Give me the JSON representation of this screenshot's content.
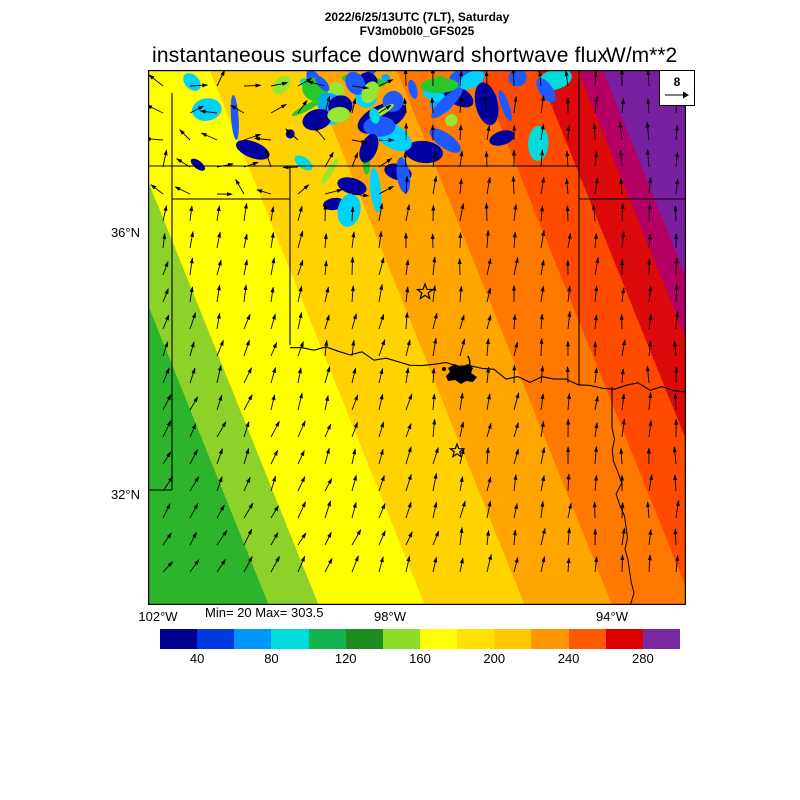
{
  "header": {
    "run_line": "2022/6/25/13UTC (7LT), Saturday",
    "model_line": "FV3m0b0l0_GFS025",
    "title": "instantaneous surface downward shortwave flux",
    "units": "W/m**2"
  },
  "map": {
    "stats_label": "Min= 20 Max= 303.5",
    "reference_value": "8",
    "lat_labels": [
      "36°N",
      "32°N"
    ],
    "lon_labels": [
      "102°W",
      "98°W",
      "94°W"
    ]
  },
  "chart_data": {
    "type": "heatmap",
    "title": "instantaneous surface downward shortwave flux",
    "units": "W/m**2",
    "timestamp": "2022/6/25/13UTC (7LT), Saturday",
    "model": "FV3m0b0l0_GFS025",
    "min": 20,
    "max": 303.5,
    "vector_overlay": {
      "type": "wind-arrows",
      "reference_value": 8
    },
    "x_axis": {
      "ticks": [
        "102°W",
        "98°W",
        "94°W"
      ]
    },
    "y_axis": {
      "ticks": [
        "36°N",
        "32°N"
      ]
    },
    "colorbar": {
      "orientation": "horizontal",
      "range": [
        20,
        300
      ],
      "tick_values": [
        40,
        80,
        120,
        160,
        200,
        240,
        280
      ],
      "segment_colors": [
        "#00008C",
        "#0038E1",
        "#0096FF",
        "#00DCDC",
        "#14B450",
        "#1E8C1E",
        "#8CDC28",
        "#FFFF00",
        "#FFE100",
        "#FFC800",
        "#FF9600",
        "#FF5A00",
        "#DC0000",
        "#7828A0"
      ]
    },
    "legend_position": "bottom",
    "grid": false
  }
}
